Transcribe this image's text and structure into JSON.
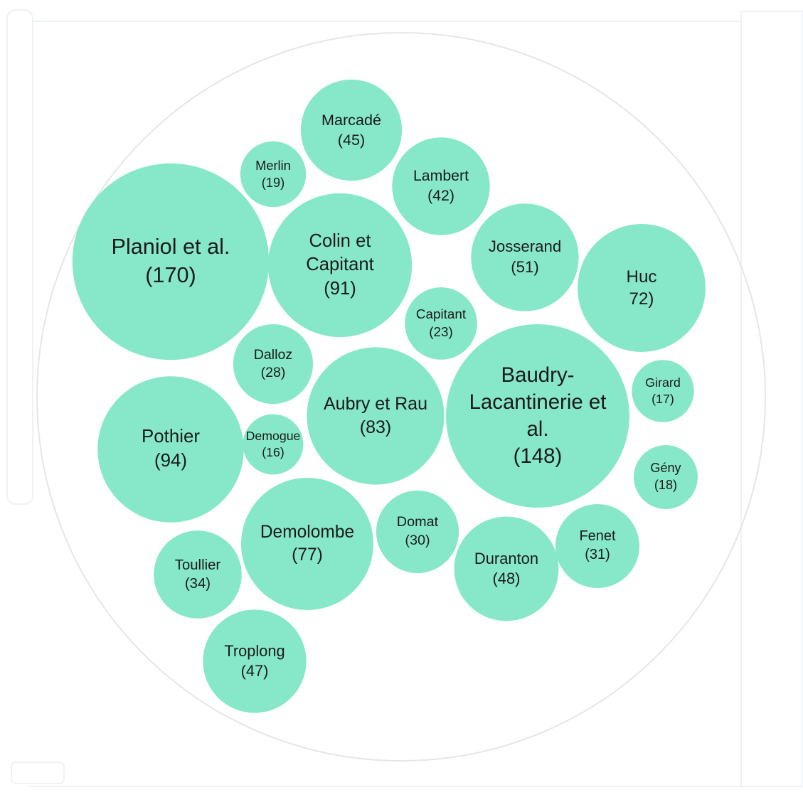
{
  "chart_data": {
    "type": "packed_bubble",
    "color": "#86e8c8",
    "categories": [
      "Planiol et al.",
      "Colin et Capitant",
      "Marcadé",
      "Merlin",
      "Lambert",
      "Josserand",
      "Huc",
      "Capitant",
      "Dalloz",
      "Aubry et Rau",
      "Baudry-Lacantinerie et al.",
      "Girard",
      "Pothier",
      "Demogue",
      "Gény",
      "Demolombe",
      "Domat",
      "Duranton",
      "Fenet",
      "Toullier",
      "Troplong"
    ],
    "values": [
      170,
      91,
      45,
      19,
      42,
      51,
      72,
      23,
      28,
      83,
      148,
      17,
      94,
      16,
      18,
      77,
      30,
      48,
      31,
      34,
      47
    ],
    "value_labels": [
      "(170)",
      "(91)",
      "(45)",
      "(19)",
      "(42)",
      "(51)",
      "72)",
      "(23)",
      "(28)",
      "(83)",
      "(148)",
      "(17)",
      "(94)",
      "(16)",
      "(18)",
      "(77)",
      "(30)",
      "(48)",
      "(31)",
      "(34)",
      "(47)"
    ]
  }
}
